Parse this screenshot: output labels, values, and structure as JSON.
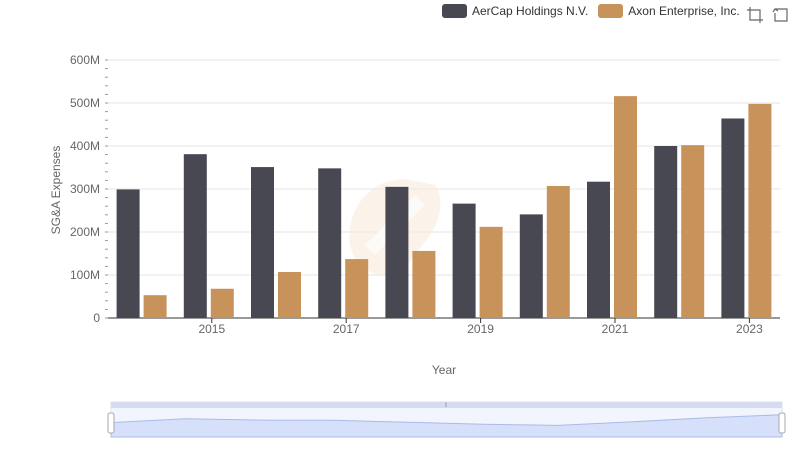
{
  "legend": {
    "items": [
      {
        "label": "AerCap Holdings N.V.",
        "color": "#484852"
      },
      {
        "label": "Axon Enterprise, Inc.",
        "color": "#c8925b"
      }
    ]
  },
  "toolbar": {
    "icons": [
      "zoom-select-icon",
      "zoom-reset-icon"
    ]
  },
  "chart_data": {
    "type": "bar",
    "x": [
      2014,
      2015,
      2016,
      2017,
      2018,
      2019,
      2020,
      2021,
      2022,
      2023
    ],
    "tick_labels": [
      "2015",
      "2017",
      "2019",
      "2021",
      "2023"
    ],
    "ylim": [
      0,
      600
    ],
    "yticks": [
      "0",
      "100M",
      "200M",
      "300M",
      "400M",
      "500M",
      "600M"
    ],
    "xlabel": "Year",
    "ylabel": "SG&A Expenses",
    "grid": true,
    "legend_position": "top-right",
    "series": [
      {
        "name": "AerCap Holdings N.V.",
        "color": "#484852",
        "values": [
          299,
          381,
          351,
          348,
          305,
          266,
          241,
          317,
          400,
          464
        ]
      },
      {
        "name": "Axon Enterprise, Inc.",
        "color": "#c8925b",
        "values": [
          53,
          68,
          107,
          137,
          156,
          212,
          307,
          516,
          402,
          498
        ]
      }
    ]
  },
  "zoom_slider": {
    "handle_label": "⦀"
  }
}
